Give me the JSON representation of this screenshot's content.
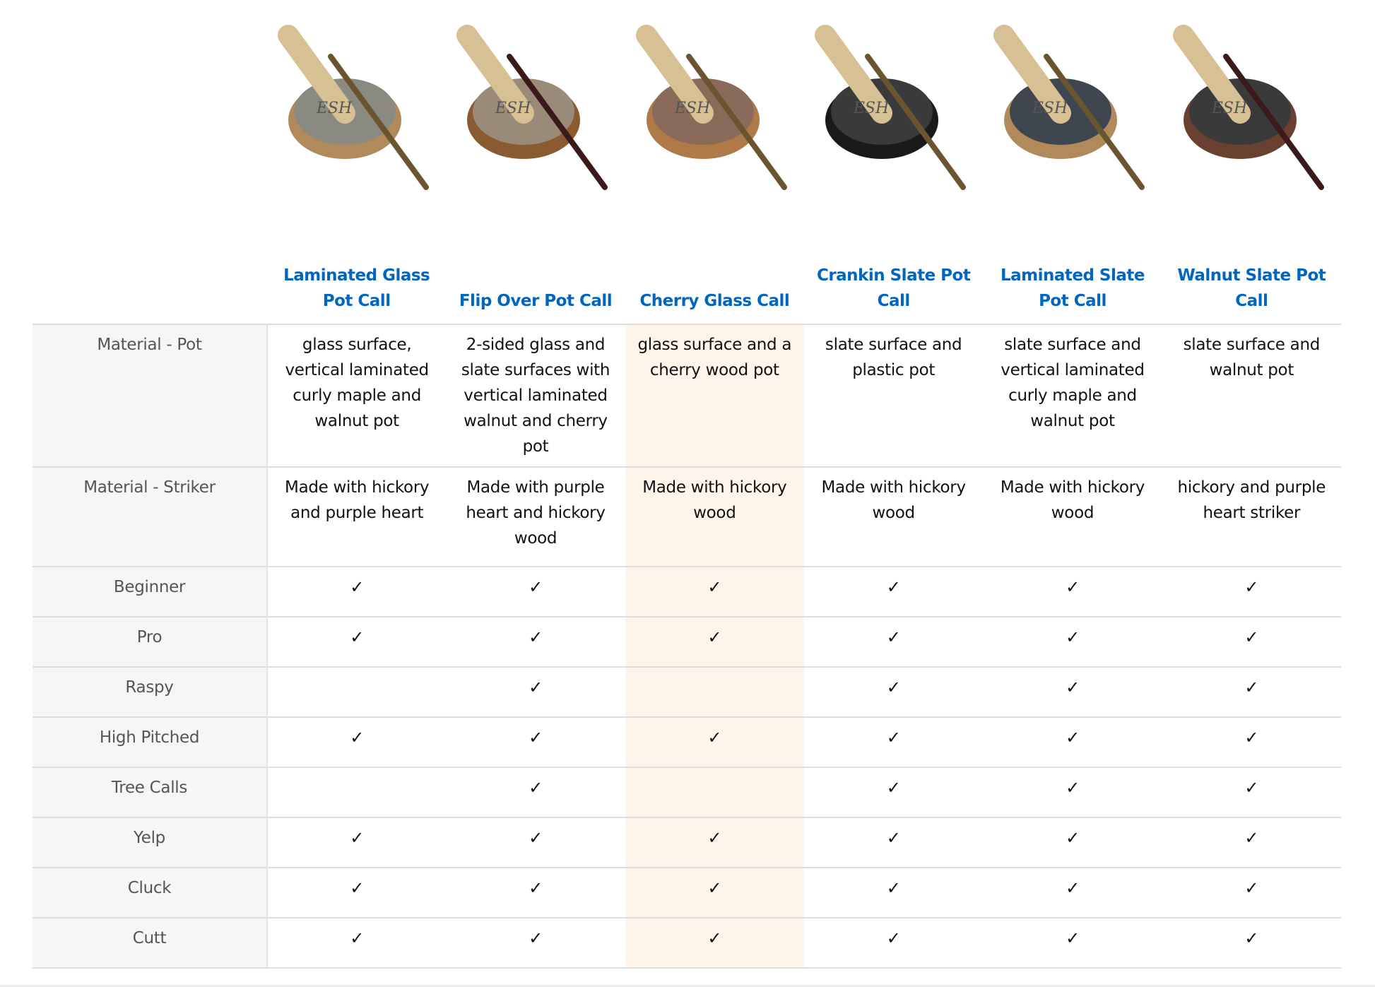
{
  "products": [
    {
      "name": "Laminated Glass Pot Call",
      "pot_color": "#8a8a80",
      "rim_color": "#b08a5a",
      "striker_color": "#6b5530"
    },
    {
      "name": "Flip Over Pot Call",
      "pot_color": "#9a8a78",
      "rim_color": "#8a5a30",
      "striker_color": "#3a1a1a"
    },
    {
      "name": "Cherry Glass Call",
      "pot_color": "#8a6a58",
      "rim_color": "#b07a48",
      "striker_color": "#6b5530"
    },
    {
      "name": "Crankin Slate Pot Call",
      "pot_color": "#3a3a3a",
      "rim_color": "#1a1a1a",
      "striker_color": "#6b5530"
    },
    {
      "name": "Laminated Slate Pot Call",
      "pot_color": "#3f4650",
      "rim_color": "#b08a5a",
      "striker_color": "#6b5530"
    },
    {
      "name": "Walnut Slate Pot Call",
      "pot_color": "#3a3a3a",
      "rim_color": "#6a4030",
      "striker_color": "#3a1a1a"
    }
  ],
  "logo_text": "ESH",
  "highlight_color": "#fef4ea",
  "check_symbol": "✓",
  "rows": [
    {
      "label": "Material - Pot",
      "type": "text",
      "values": [
        "glass surface, vertical laminated curly maple and walnut pot",
        "2-sided glass and slate surfaces with vertical laminated walnut and cherry pot",
        "glass surface and a cherry wood pot",
        "slate surface and plastic pot",
        "slate surface and vertical laminated curly maple and walnut pot",
        "slate surface and walnut pot"
      ]
    },
    {
      "label": "Material - Striker",
      "type": "text",
      "values": [
        "Made with hickory and purple heart",
        "Made with purple heart and hickory wood",
        "Made with hickory wood",
        "Made with hickory wood",
        "Made with hickory wood",
        "hickory and purple heart striker"
      ]
    },
    {
      "label": "Beginner",
      "type": "check",
      "values": [
        true,
        true,
        true,
        true,
        true,
        true
      ]
    },
    {
      "label": "Pro",
      "type": "check",
      "values": [
        true,
        true,
        true,
        true,
        true,
        true
      ]
    },
    {
      "label": "Raspy",
      "type": "check",
      "values": [
        false,
        true,
        false,
        true,
        true,
        true
      ]
    },
    {
      "label": "High Pitched",
      "type": "check",
      "values": [
        true,
        true,
        true,
        true,
        true,
        true
      ]
    },
    {
      "label": "Tree Calls",
      "type": "check",
      "values": [
        false,
        true,
        false,
        true,
        true,
        true
      ]
    },
    {
      "label": "Yelp",
      "type": "check",
      "values": [
        true,
        true,
        true,
        true,
        true,
        true
      ]
    },
    {
      "label": "Cluck",
      "type": "check",
      "values": [
        true,
        true,
        true,
        true,
        true,
        true
      ]
    },
    {
      "label": "Cutt",
      "type": "check",
      "values": [
        true,
        true,
        true,
        true,
        true,
        true
      ]
    }
  ]
}
